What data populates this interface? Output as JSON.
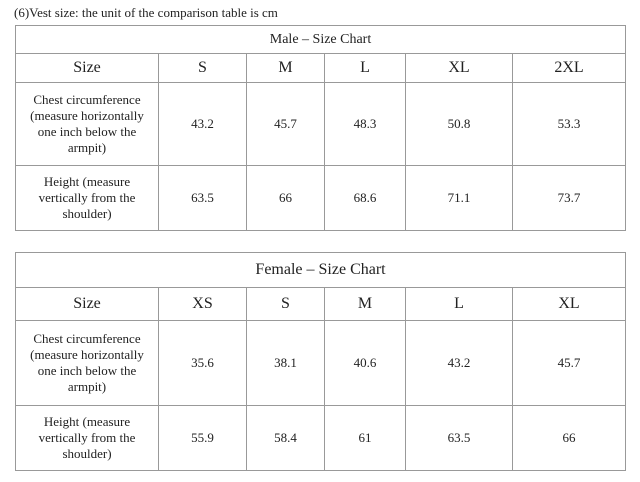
{
  "caption": "(6)Vest size: the unit of the comparison table is cm",
  "tables": [
    {
      "title": "Male – Size Chart",
      "header": [
        "Size",
        "S",
        "M",
        "L",
        "XL",
        "2XL"
      ],
      "rows": [
        [
          "Chest circumference (measure horizontally one inch below the armpit)",
          "43.2",
          "45.7",
          "48.3",
          "50.8",
          "53.3"
        ],
        [
          "Height (measure vertically from the shoulder)",
          "63.5",
          "66",
          "68.6",
          "71.1",
          "73.7"
        ]
      ]
    },
    {
      "title": "Female – Size Chart",
      "header": [
        "Size",
        "XS",
        "S",
        "M",
        "L",
        "XL"
      ],
      "rows": [
        [
          "Chest circumference (measure horizontally one inch below the armpit)",
          "35.6",
          "38.1",
          "40.6",
          "43.2",
          "45.7"
        ],
        [
          "Height (measure vertically from the shoulder)",
          "55.9",
          "58.4",
          "61",
          "63.5",
          "66"
        ]
      ]
    }
  ]
}
